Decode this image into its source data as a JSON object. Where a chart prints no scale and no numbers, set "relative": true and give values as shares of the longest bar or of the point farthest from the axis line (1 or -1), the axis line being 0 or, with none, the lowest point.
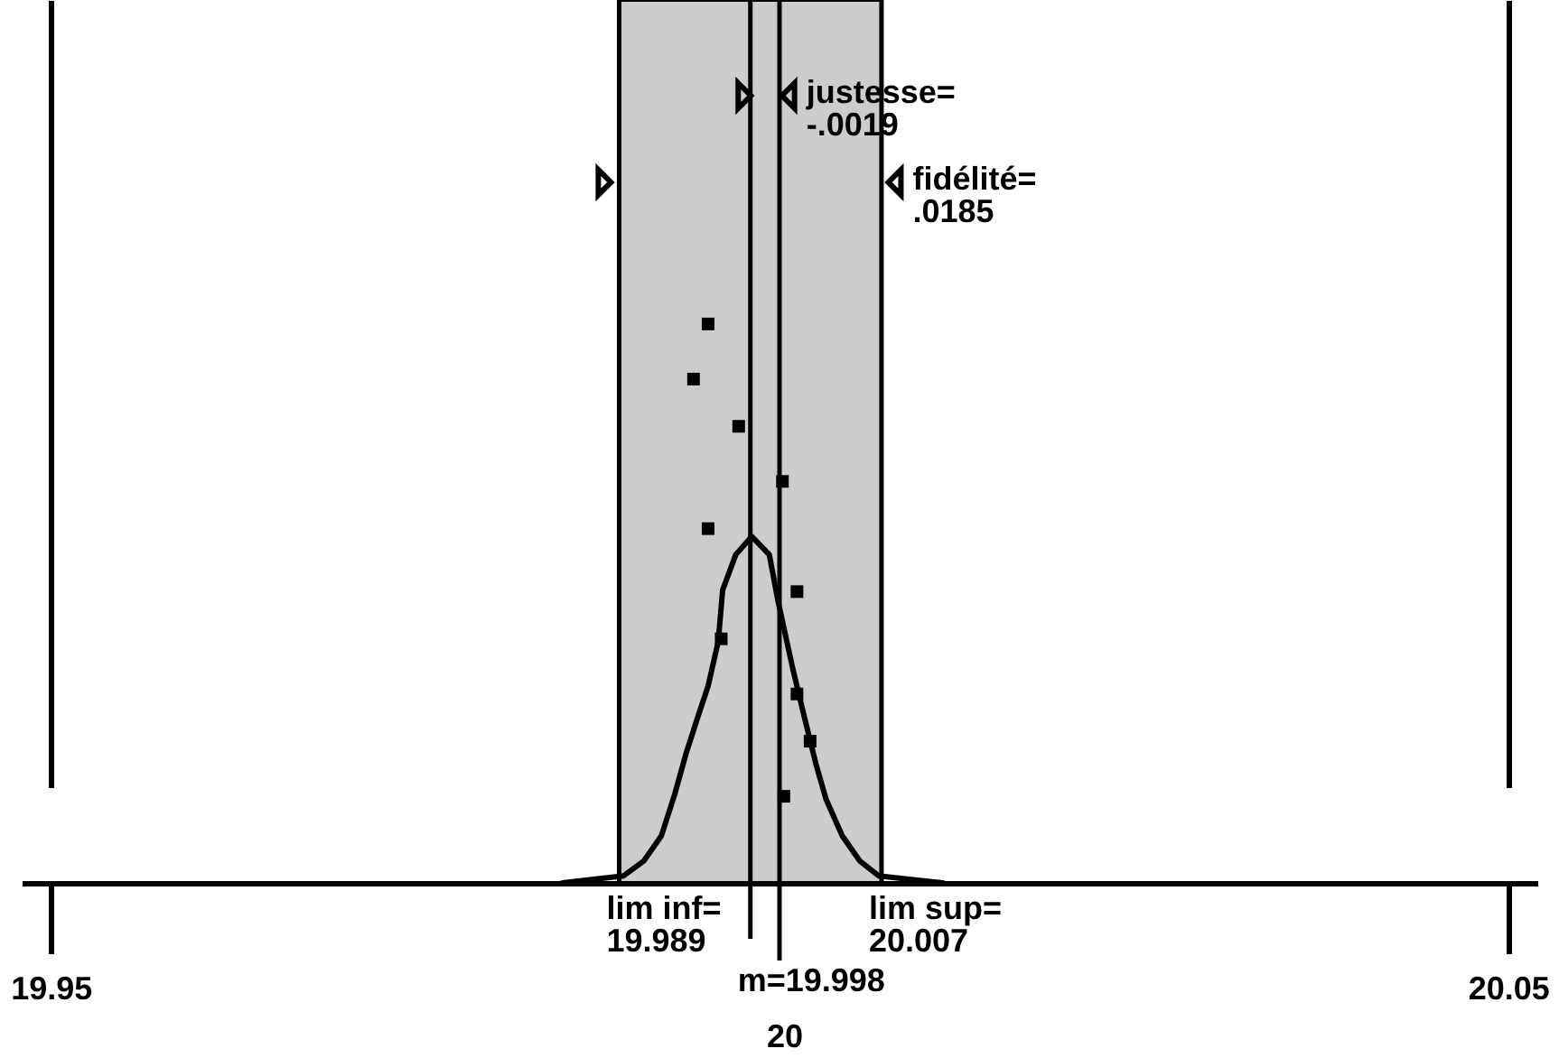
{
  "chart_data": {
    "type": "scatter",
    "relative": true,
    "xlim": [
      19.948,
      20.052
    ],
    "xticks": [
      19.95,
      20.05
    ],
    "grid": "x",
    "series": [
      {
        "marker": "square",
        "color": "#000000",
        "x": [
          20.0003,
          20.0021,
          20.0012,
          19.996,
          20.0012,
          19.9951,
          20.0002,
          19.9972,
          19.9941,
          19.9951
        ],
        "values": [
          0.11,
          0.18,
          0.24,
          0.31,
          0.37,
          0.45,
          0.51,
          0.58,
          0.64,
          0.71
        ]
      },
      {
        "type": "line",
        "color": "#000000",
        "x": [
          19.9851,
          19.9893,
          19.9907,
          19.9919,
          19.9928,
          19.9936,
          19.9944,
          19.9951,
          19.9958,
          19.9961,
          19.997,
          19.9981,
          19.9993,
          19.9999,
          20.0009,
          20.0017,
          20.0025,
          20.0032,
          20.0043,
          20.0055,
          20.0068,
          20.0112
        ],
        "values": [
          0,
          0.009,
          0.028,
          0.06,
          0.112,
          0.165,
          0.211,
          0.25,
          0.307,
          0.372,
          0.417,
          0.44,
          0.417,
          0.358,
          0.273,
          0.211,
          0.151,
          0.106,
          0.06,
          0.028,
          0.009,
          0
        ]
      },
      {
        "marker": "triangle",
        "color": "#000000",
        "x": [
          19.9976,
          20.0006
        ],
        "values": [
          1,
          1
        ]
      },
      {
        "marker": "triangle",
        "color": "#000000",
        "x": [
          19.988,
          20.0079
        ],
        "values": [
          0.89,
          0.89
        ]
      }
    ],
    "bands": [
      {
        "axis": "x",
        "from": 19.989,
        "to": 20.007,
        "color": "#cccccc"
      }
    ],
    "ref_lines": [
      {
        "axis": "x",
        "value": 19.989,
        "label": "lim inf=\n19.989"
      },
      {
        "axis": "x",
        "value": 20.007,
        "label": "lim sup=\n20.007"
      },
      {
        "axis": "x",
        "value": 19.998,
        "label": "m=19.998"
      },
      {
        "axis": "x",
        "value": 20,
        "label": "20"
      }
    ],
    "annotations": [
      {
        "text": "justesse=\n-.0019",
        "x": 20.0006,
        "y": 1
      },
      {
        "text": "fidélité=\n.0185",
        "x": 20.0079,
        "y": 0.89
      }
    ]
  }
}
